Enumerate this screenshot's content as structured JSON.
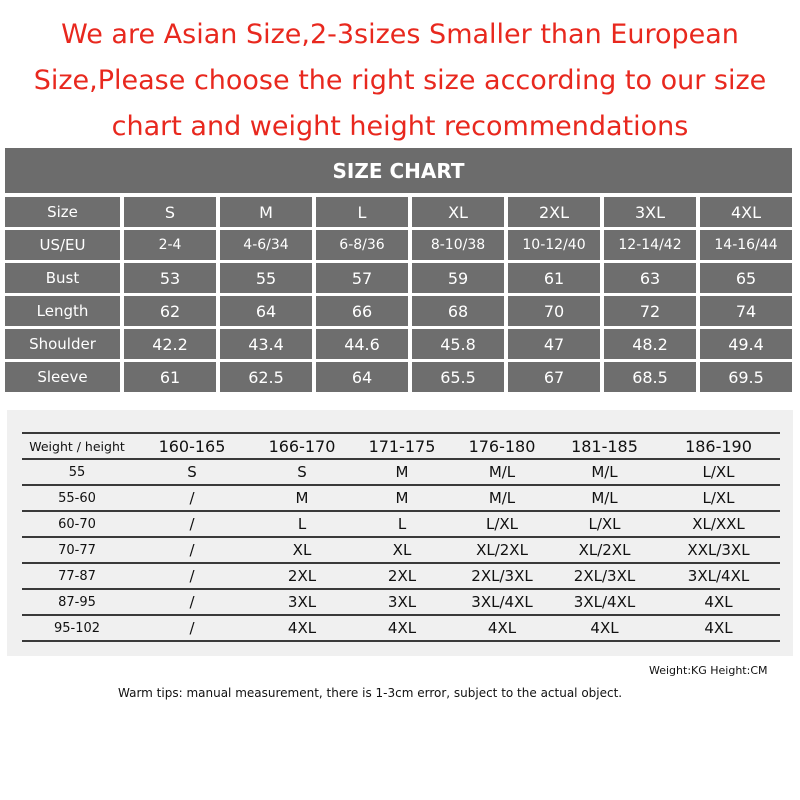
{
  "banner": {
    "line1": "We are Asian Size,2-3sizes Smaller than European",
    "line2": "Size,Please choose the right size according to our size",
    "line3": "chart and weight height recommendations"
  },
  "size_chart": {
    "title": "SIZE CHART",
    "header": [
      "Size",
      "S",
      "M",
      "L",
      "XL",
      "2XL",
      "3XL",
      "4XL"
    ],
    "rows": [
      [
        "US/EU",
        "2-4",
        "4-6/34",
        "6-8/36",
        "8-10/38",
        "10-12/40",
        "12-14/42",
        "14-16/44"
      ],
      [
        "Bust",
        "53",
        "55",
        "57",
        "59",
        "61",
        "63",
        "65"
      ],
      [
        "Length",
        "62",
        "64",
        "66",
        "68",
        "70",
        "72",
        "74"
      ],
      [
        "Shoulder",
        "42.2",
        "43.4",
        "44.6",
        "45.8",
        "47",
        "48.2",
        "49.4"
      ],
      [
        "Sleeve",
        "61",
        "62.5",
        "64",
        "65.5",
        "67",
        "68.5",
        "69.5"
      ]
    ]
  },
  "weight_height": {
    "header": [
      "Weight / height",
      "160-165",
      "166-170",
      "171-175",
      "176-180",
      "181-185",
      "186-190"
    ],
    "rows": [
      [
        "55",
        "S",
        "S",
        "M",
        "M/L",
        "M/L",
        "L/XL"
      ],
      [
        "55-60",
        "/",
        "M",
        "M",
        "M/L",
        "M/L",
        "L/XL"
      ],
      [
        "60-70",
        "/",
        "L",
        "L",
        "L/XL",
        "L/XL",
        "XL/XXL"
      ],
      [
        "70-77",
        "/",
        "XL",
        "XL",
        "XL/2XL",
        "XL/2XL",
        "XXL/3XL"
      ],
      [
        "77-87",
        "/",
        "2XL",
        "2XL",
        "2XL/3XL",
        "2XL/3XL",
        "3XL/4XL"
      ],
      [
        "87-95",
        "/",
        "3XL",
        "3XL",
        "3XL/4XL",
        "3XL/4XL",
        "4XL"
      ],
      [
        "95-102",
        "/",
        "4XL",
        "4XL",
        "4XL",
        "4XL",
        "4XL"
      ]
    ]
  },
  "units_note": "Weight:KG  Height:CM",
  "tips": "Warm tips: manual measurement, there is 1-3cm error, subject to the actual object.",
  "colors": {
    "banner_text": "#e8281e",
    "chart_cell": "#6e6e6e",
    "panel_bg": "#f0f0f0"
  }
}
